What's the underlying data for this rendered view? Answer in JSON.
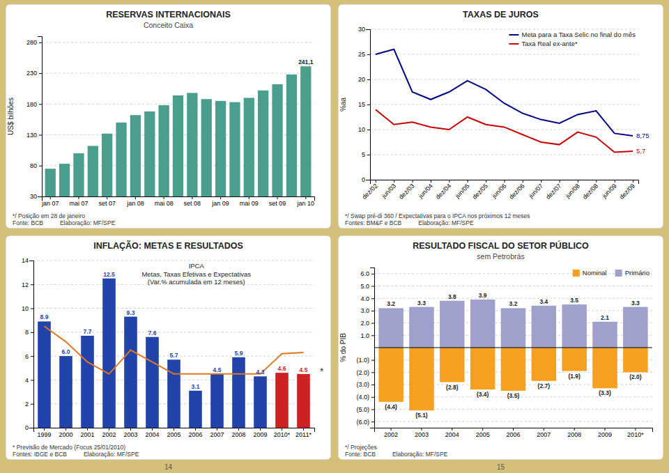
{
  "background_color": "#d4c078",
  "page_numbers": [
    14,
    15
  ],
  "chart_data": [
    {
      "type": "bar",
      "title": "RESERVAS INTERNACIONAIS",
      "subtitle": "Conceito Caixa",
      "ylabel": "US$ bilhões",
      "categories": [
        "jan 07",
        null,
        "mai 07",
        null,
        "set 07",
        null,
        "jan 08",
        null,
        "mai 08",
        null,
        "set 08",
        null,
        "jan 09",
        null,
        "mai 09",
        null,
        "set 09",
        null,
        "jan 10"
      ],
      "values": [
        75,
        83,
        100,
        112,
        132,
        150,
        162,
        168,
        178,
        194,
        198,
        188,
        185,
        183,
        190,
        202,
        212,
        228,
        241.1
      ],
      "value_labels": [
        null,
        null,
        null,
        null,
        null,
        null,
        null,
        null,
        null,
        null,
        null,
        null,
        null,
        null,
        null,
        null,
        null,
        null,
        "241,1"
      ],
      "color": "#4a9e8e",
      "ylim": [
        30,
        290
      ],
      "yticks": [
        30,
        80,
        130,
        180,
        230,
        280
      ],
      "grid": true,
      "notes": [
        "*/ Posição em 28 de janeiro",
        "Fonte: BCB",
        "Elaboração: MF/SPE"
      ]
    },
    {
      "type": "line",
      "title": "TAXAS DE JUROS",
      "ylabel": "%aa",
      "categories": [
        "dez/02",
        "jun/03",
        "dez/03",
        "jun/04",
        "dez/04",
        "jun/05",
        "dez/05",
        "jun/06",
        "dez/06",
        "jun/07",
        "dez/07",
        "jun/08",
        "dez/08",
        "jun/09",
        "dez/09"
      ],
      "series": [
        {
          "name": "Meta para a Taxa Selic no final do mês",
          "color": "#00008b",
          "values": [
            25.0,
            26.0,
            17.5,
            16.0,
            17.5,
            19.75,
            18.0,
            15.25,
            13.25,
            12.0,
            11.25,
            13.0,
            13.75,
            9.25,
            8.75
          ],
          "value_labels": [
            null,
            null,
            null,
            null,
            null,
            null,
            null,
            null,
            null,
            null,
            null,
            null,
            null,
            null,
            "8,75"
          ]
        },
        {
          "name": "Taxa Real ex-ante*",
          "color": "#cc0000",
          "values": [
            14.0,
            11.0,
            11.5,
            10.5,
            10.0,
            12.5,
            11.0,
            10.5,
            9.0,
            7.5,
            7.0,
            9.5,
            8.5,
            5.5,
            5.7
          ],
          "value_labels": [
            null,
            null,
            null,
            null,
            null,
            null,
            null,
            null,
            null,
            null,
            null,
            null,
            null,
            null,
            "5,7"
          ]
        }
      ],
      "ylim": [
        0,
        30
      ],
      "yticks": [
        0,
        5,
        10,
        15,
        20,
        25,
        30
      ],
      "grid": true,
      "legend": "upper right",
      "notes": [
        "*/ Swap pré-di 360 / Expectativas para o IPCA nos próximos 12 meses",
        "Fontes: BM&F e BCB",
        "Elaboração: MF/SPE"
      ]
    },
    {
      "type": "bar",
      "title": "INFLAÇÃO: METAS E RESULTADOS",
      "annotations": [
        "IPCA\nMetas, Taxas Efetivas e Expectativas\n(Var.% acumulada em 12 meses)",
        "*"
      ],
      "categories": [
        "1999",
        "2000",
        "2001",
        "2002",
        "2003",
        "2004",
        "2005",
        "2006",
        "2007",
        "2008",
        "2009",
        "2010*",
        "2011*"
      ],
      "series": [
        {
          "type": "bar",
          "colors": [
            "#2244aa",
            "#2244aa",
            "#2244aa",
            "#2244aa",
            "#2244aa",
            "#2244aa",
            "#2244aa",
            "#2244aa",
            "#2244aa",
            "#2244aa",
            "#2244aa",
            "#cc2222",
            "#cc2222"
          ],
          "values": [
            8.9,
            6.0,
            7.7,
            12.5,
            9.3,
            7.6,
            5.7,
            3.1,
            4.5,
            5.9,
            4.3,
            4.6,
            4.5
          ],
          "value_labels": [
            "8.9",
            "6.0",
            "7.7",
            "12.5",
            "9.3",
            "7.6",
            "5.7",
            "3.1",
            "4.5",
            "5.9",
            "4.3",
            "4.6",
            "4.5"
          ]
        },
        {
          "type": "line",
          "color": "#e07820",
          "values": [
            8.5,
            7.2,
            5.5,
            4.5,
            6.5,
            5.5,
            4.5,
            4.5,
            4.5,
            4.5,
            4.5,
            6.2,
            6.3
          ]
        }
      ],
      "ylim": [
        0,
        14
      ],
      "yticks": [
        0,
        2,
        4,
        6,
        8,
        10,
        12,
        14
      ],
      "grid": true,
      "data_labels": true,
      "notes": [
        "* Previsão de Mercado (Focus 25/01/2010)",
        "Fontes: IBGE e BCB",
        "Elaboração: MF/SPE"
      ]
    },
    {
      "type": "bar",
      "title": "RESULTADO FISCAL DO SETOR PÚBLICO",
      "subtitle": "sem Petrobrás",
      "ylabel": "% do PIB",
      "categories": [
        "2002",
        "2003",
        "2004",
        "2005",
        "2006",
        "2007",
        "2008",
        "2009",
        "2010*"
      ],
      "series": [
        {
          "name": "Nominal",
          "color": "#f5a020",
          "values": [
            -4.4,
            -5.1,
            -2.8,
            -3.4,
            -3.5,
            -2.7,
            -1.9,
            -3.3,
            -2.0
          ],
          "value_labels": [
            "(4.4)",
            "(5.1)",
            "(2.8)",
            "(3.4)",
            "(3.5)",
            "(2.7)",
            "(1.9)",
            "(3.3)",
            "(2.0)"
          ]
        },
        {
          "name": "Primário",
          "color": "#a0a0cc",
          "values": [
            3.2,
            3.3,
            3.8,
            3.9,
            3.2,
            3.4,
            3.5,
            2.1,
            3.3
          ]
        }
      ],
      "stacked": true,
      "data_labels": true,
      "ylim": [
        -6.5,
        6.5
      ],
      "yticks": [
        {
          "value": -6.0,
          "label": "(6.0)"
        },
        {
          "value": -5.0,
          "label": "(5.0)"
        },
        {
          "value": -4.0,
          "label": "(4.0)"
        },
        {
          "value": -3.0,
          "label": "(3.0)"
        },
        {
          "value": -2.0,
          "label": "(2.0)"
        },
        {
          "value": -1.0,
          "label": "(1.0)"
        },
        {
          "value": 1.0,
          "label": "1.0"
        },
        {
          "value": 2.0,
          "label": "2.0"
        },
        {
          "value": 3.0,
          "label": "3.0"
        },
        {
          "value": 4.0,
          "label": "4.0"
        },
        {
          "value": 5.0,
          "label": "5.0"
        },
        {
          "value": 6.0,
          "label": "6.0"
        }
      ],
      "grid": true,
      "legend": "upper right",
      "notes": [
        "*/ Projeções",
        "Fonte: BCB",
        "Elaboração: MF/SPE"
      ]
    }
  ]
}
